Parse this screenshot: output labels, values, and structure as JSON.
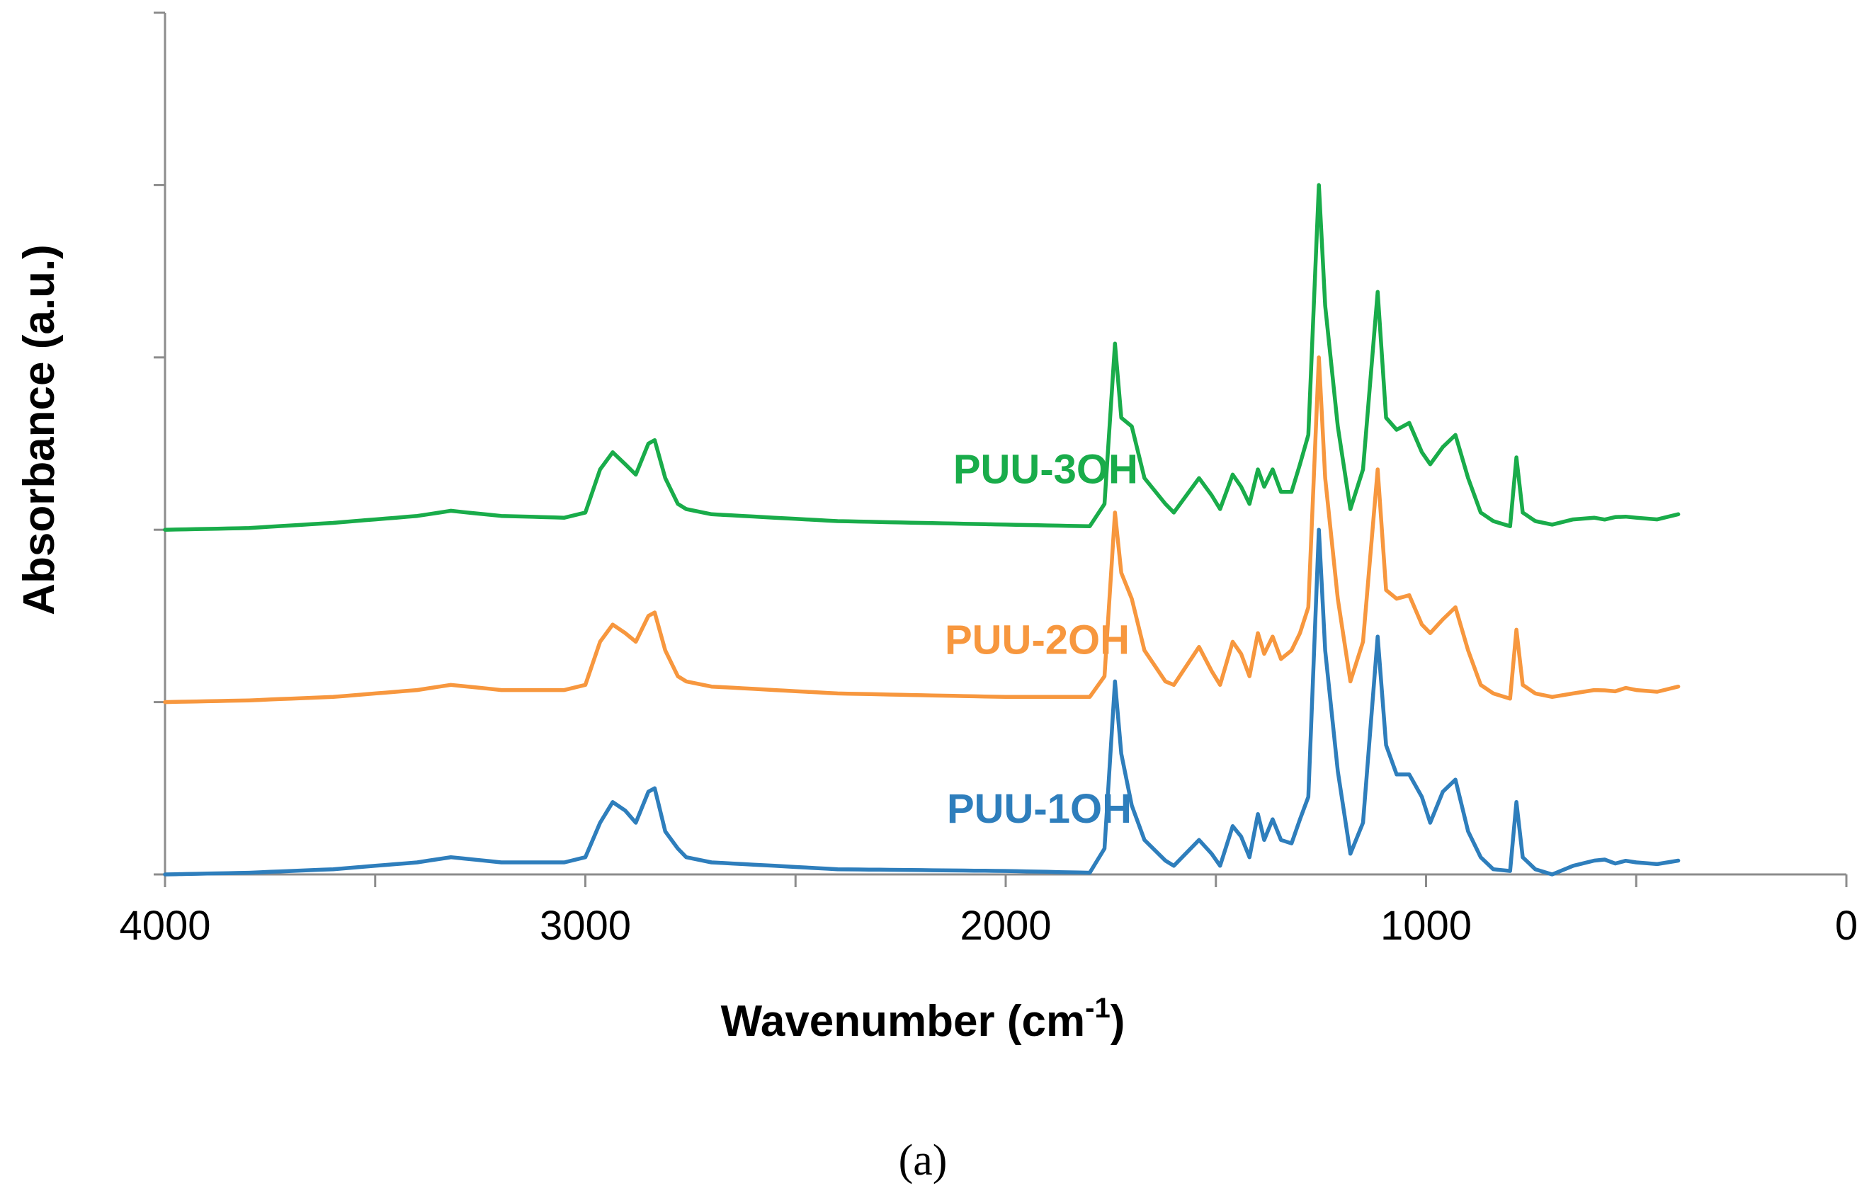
{
  "caption": "(a)",
  "chart_data": {
    "type": "line",
    "title": "",
    "xlabel": "Wavenumber (cm",
    "xlabel_superscript": "-1",
    "xlabel_suffix": ")",
    "ylabel": "Absorbance (a.u.)",
    "xlim": [
      4000,
      0
    ],
    "x_reversed": true,
    "x_ticks": [
      4000,
      3000,
      2000,
      1000,
      0
    ],
    "x_tick_labels": [
      "4000",
      "3000",
      "2000",
      "1000",
      "0"
    ],
    "ylim": [
      0,
      5
    ],
    "y_ticks": [
      0,
      1,
      2,
      3,
      4,
      5
    ],
    "y_tick_labels_visible": false,
    "grid": false,
    "series": [
      {
        "name": "PUU-1OH",
        "color": "#2e7ebc",
        "offset": 0,
        "label_anchor": [
          1920,
          0.3
        ],
        "points": [
          [
            4000,
            0.0
          ],
          [
            3800,
            0.01
          ],
          [
            3600,
            0.03
          ],
          [
            3400,
            0.07
          ],
          [
            3320,
            0.1
          ],
          [
            3200,
            0.07
          ],
          [
            3050,
            0.07
          ],
          [
            3000,
            0.1
          ],
          [
            2965,
            0.3
          ],
          [
            2935,
            0.42
          ],
          [
            2905,
            0.37
          ],
          [
            2880,
            0.3
          ],
          [
            2850,
            0.48
          ],
          [
            2835,
            0.5
          ],
          [
            2810,
            0.25
          ],
          [
            2780,
            0.15
          ],
          [
            2760,
            0.1
          ],
          [
            2700,
            0.07
          ],
          [
            2400,
            0.03
          ],
          [
            2000,
            0.02
          ],
          [
            1800,
            0.01
          ],
          [
            1765,
            0.15
          ],
          [
            1740,
            1.12
          ],
          [
            1725,
            0.7
          ],
          [
            1700,
            0.4
          ],
          [
            1670,
            0.2
          ],
          [
            1620,
            0.08
          ],
          [
            1600,
            0.05
          ],
          [
            1540,
            0.2
          ],
          [
            1510,
            0.12
          ],
          [
            1490,
            0.05
          ],
          [
            1460,
            0.28
          ],
          [
            1440,
            0.22
          ],
          [
            1420,
            0.1
          ],
          [
            1400,
            0.35
          ],
          [
            1385,
            0.2
          ],
          [
            1365,
            0.32
          ],
          [
            1345,
            0.2
          ],
          [
            1320,
            0.18
          ],
          [
            1300,
            0.32
          ],
          [
            1280,
            0.45
          ],
          [
            1255,
            2.0
          ],
          [
            1240,
            1.3
          ],
          [
            1210,
            0.6
          ],
          [
            1180,
            0.12
          ],
          [
            1150,
            0.3
          ],
          [
            1115,
            1.38
          ],
          [
            1095,
            0.75
          ],
          [
            1070,
            0.58
          ],
          [
            1040,
            0.58
          ],
          [
            1010,
            0.45
          ],
          [
            990,
            0.3
          ],
          [
            960,
            0.48
          ],
          [
            930,
            0.55
          ],
          [
            900,
            0.25
          ],
          [
            870,
            0.1
          ],
          [
            840,
            0.03
          ],
          [
            800,
            0.02
          ],
          [
            785,
            0.42
          ],
          [
            770,
            0.1
          ],
          [
            740,
            0.03
          ],
          [
            700,
            0.0
          ],
          [
            650,
            0.05
          ],
          [
            600,
            0.08
          ],
          [
            500,
            0.07
          ],
          [
            450,
            0.06
          ],
          [
            400,
            0.08
          ]
        ]
      },
      {
        "name": "PUU-2OH",
        "color": "#f7973e",
        "offset": 1,
        "label_anchor": [
          1925,
          0.28
        ],
        "points": [
          [
            4000,
            0.0
          ],
          [
            3800,
            0.01
          ],
          [
            3600,
            0.03
          ],
          [
            3400,
            0.07
          ],
          [
            3320,
            0.1
          ],
          [
            3200,
            0.07
          ],
          [
            3050,
            0.07
          ],
          [
            3000,
            0.1
          ],
          [
            2965,
            0.35
          ],
          [
            2935,
            0.45
          ],
          [
            2905,
            0.4
          ],
          [
            2880,
            0.35
          ],
          [
            2850,
            0.5
          ],
          [
            2835,
            0.52
          ],
          [
            2810,
            0.3
          ],
          [
            2780,
            0.15
          ],
          [
            2760,
            0.12
          ],
          [
            2700,
            0.09
          ],
          [
            2400,
            0.05
          ],
          [
            2000,
            0.03
          ],
          [
            1800,
            0.03
          ],
          [
            1765,
            0.15
          ],
          [
            1740,
            1.1
          ],
          [
            1725,
            0.75
          ],
          [
            1700,
            0.6
          ],
          [
            1670,
            0.3
          ],
          [
            1620,
            0.12
          ],
          [
            1600,
            0.1
          ],
          [
            1540,
            0.32
          ],
          [
            1510,
            0.18
          ],
          [
            1490,
            0.1
          ],
          [
            1460,
            0.35
          ],
          [
            1440,
            0.28
          ],
          [
            1420,
            0.15
          ],
          [
            1400,
            0.4
          ],
          [
            1385,
            0.28
          ],
          [
            1365,
            0.38
          ],
          [
            1345,
            0.25
          ],
          [
            1320,
            0.3
          ],
          [
            1300,
            0.4
          ],
          [
            1280,
            0.55
          ],
          [
            1255,
            2.0
          ],
          [
            1240,
            1.3
          ],
          [
            1210,
            0.6
          ],
          [
            1180,
            0.12
          ],
          [
            1150,
            0.35
          ],
          [
            1115,
            1.35
          ],
          [
            1095,
            0.65
          ],
          [
            1070,
            0.6
          ],
          [
            1040,
            0.62
          ],
          [
            1010,
            0.45
          ],
          [
            990,
            0.4
          ],
          [
            960,
            0.48
          ],
          [
            930,
            0.55
          ],
          [
            900,
            0.3
          ],
          [
            870,
            0.1
          ],
          [
            840,
            0.05
          ],
          [
            800,
            0.02
          ],
          [
            785,
            0.42
          ],
          [
            770,
            0.1
          ],
          [
            740,
            0.05
          ],
          [
            700,
            0.03
          ],
          [
            650,
            0.05
          ],
          [
            600,
            0.07
          ],
          [
            500,
            0.07
          ],
          [
            450,
            0.06
          ],
          [
            400,
            0.09
          ]
        ]
      },
      {
        "name": "PUU-3OH",
        "color": "#19ac4a",
        "offset": 2,
        "label_anchor": [
          1905,
          0.27
        ],
        "points": [
          [
            4000,
            0.0
          ],
          [
            3800,
            0.01
          ],
          [
            3600,
            0.04
          ],
          [
            3400,
            0.08
          ],
          [
            3320,
            0.11
          ],
          [
            3200,
            0.08
          ],
          [
            3050,
            0.07
          ],
          [
            3000,
            0.1
          ],
          [
            2965,
            0.35
          ],
          [
            2935,
            0.45
          ],
          [
            2905,
            0.38
          ],
          [
            2880,
            0.32
          ],
          [
            2850,
            0.5
          ],
          [
            2835,
            0.52
          ],
          [
            2810,
            0.3
          ],
          [
            2780,
            0.15
          ],
          [
            2760,
            0.12
          ],
          [
            2700,
            0.09
          ],
          [
            2400,
            0.05
          ],
          [
            2000,
            0.03
          ],
          [
            1800,
            0.02
          ],
          [
            1765,
            0.15
          ],
          [
            1740,
            1.08
          ],
          [
            1725,
            0.65
          ],
          [
            1700,
            0.6
          ],
          [
            1670,
            0.3
          ],
          [
            1620,
            0.15
          ],
          [
            1600,
            0.1
          ],
          [
            1540,
            0.3
          ],
          [
            1510,
            0.2
          ],
          [
            1490,
            0.12
          ],
          [
            1460,
            0.32
          ],
          [
            1440,
            0.25
          ],
          [
            1420,
            0.15
          ],
          [
            1400,
            0.35
          ],
          [
            1385,
            0.25
          ],
          [
            1365,
            0.35
          ],
          [
            1345,
            0.22
          ],
          [
            1320,
            0.22
          ],
          [
            1300,
            0.38
          ],
          [
            1280,
            0.55
          ],
          [
            1255,
            2.0
          ],
          [
            1240,
            1.3
          ],
          [
            1210,
            0.6
          ],
          [
            1180,
            0.12
          ],
          [
            1150,
            0.35
          ],
          [
            1115,
            1.38
          ],
          [
            1095,
            0.65
          ],
          [
            1070,
            0.58
          ],
          [
            1040,
            0.62
          ],
          [
            1010,
            0.45
          ],
          [
            990,
            0.38
          ],
          [
            960,
            0.48
          ],
          [
            930,
            0.55
          ],
          [
            900,
            0.3
          ],
          [
            870,
            0.1
          ],
          [
            840,
            0.05
          ],
          [
            800,
            0.02
          ],
          [
            785,
            0.42
          ],
          [
            770,
            0.1
          ],
          [
            740,
            0.05
          ],
          [
            700,
            0.03
          ],
          [
            650,
            0.06
          ],
          [
            600,
            0.07
          ],
          [
            500,
            0.07
          ],
          [
            450,
            0.06
          ],
          [
            400,
            0.09
          ]
        ]
      }
    ]
  }
}
